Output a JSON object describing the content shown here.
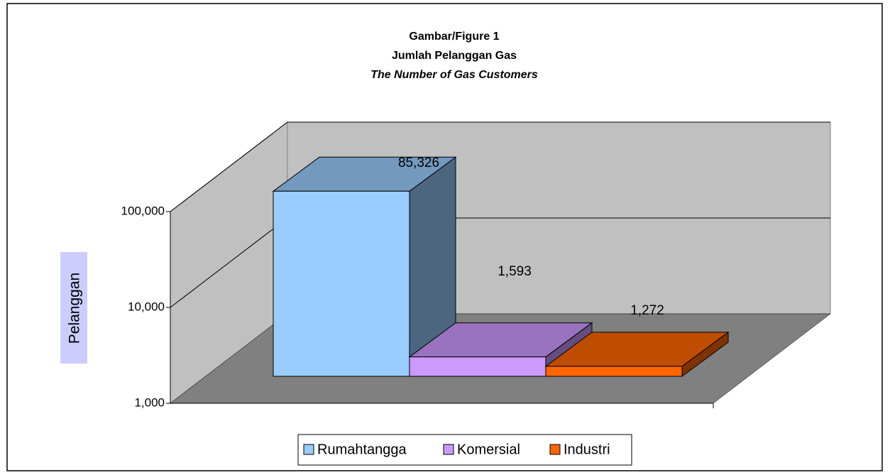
{
  "chart_data": {
    "type": "bar",
    "title": [
      "Gambar/Figure 1",
      "Jumlah Pelanggan Gas",
      "The Number of Gas Customers"
    ],
    "y_label": "Pelanggan",
    "categories": [
      null
    ],
    "series": [
      {
        "name": "Rumahtangga",
        "color": "#99ccff",
        "values": [
          85326
        ],
        "value_labels": [
          "85,326"
        ]
      },
      {
        "name": "Komersial",
        "color": "#cc99ff",
        "values": [
          1593
        ],
        "value_labels": [
          "1,593"
        ]
      },
      {
        "name": "Industri",
        "color": "#ff6600",
        "values": [
          1272
        ],
        "value_labels": [
          "1,272"
        ]
      }
    ],
    "ylim": [
      1000,
      100000
    ],
    "yticks": [
      {
        "value": 1000,
        "label": "1,000"
      },
      {
        "value": 10000,
        "label": "10,000"
      },
      {
        "value": 100000,
        "label": "100,000"
      }
    ],
    "log_scale": true,
    "grid": true,
    "legend": "bottom"
  }
}
